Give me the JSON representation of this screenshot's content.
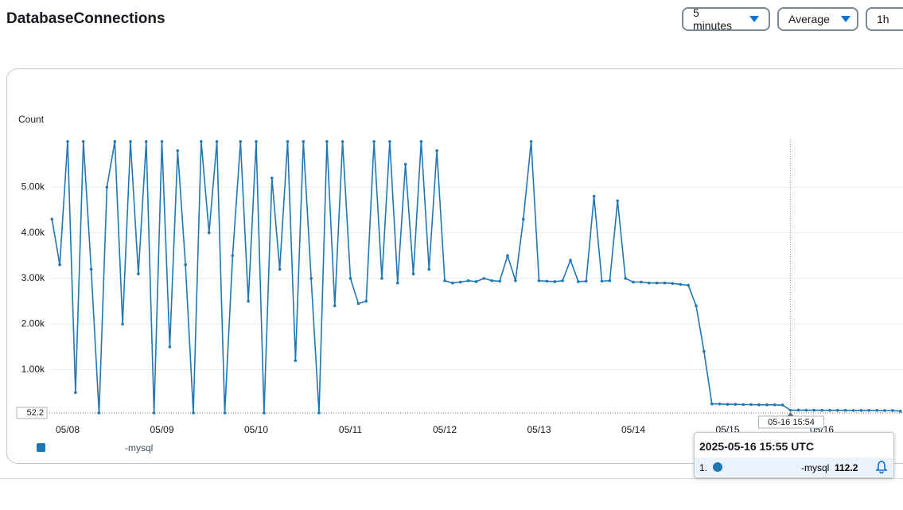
{
  "header": {
    "title": "DatabaseConnections",
    "period": "5 minutes",
    "statistic": "Average",
    "range": "1h"
  },
  "chart_data": {
    "type": "line",
    "y_label": "Count",
    "categories": [
      null,
      null,
      "05/08",
      null,
      null,
      null,
      null,
      null,
      null,
      null,
      null,
      null,
      null,
      null,
      "05/09",
      null,
      null,
      null,
      null,
      null,
      null,
      null,
      null,
      null,
      null,
      null,
      "05/10",
      null,
      null,
      null,
      null,
      null,
      null,
      null,
      null,
      null,
      null,
      null,
      "05/11",
      null,
      null,
      null,
      null,
      null,
      null,
      null,
      null,
      null,
      null,
      null,
      "05/12",
      null,
      null,
      null,
      null,
      null,
      null,
      null,
      null,
      null,
      null,
      null,
      "05/13",
      null,
      null,
      null,
      null,
      null,
      null,
      null,
      null,
      null,
      null,
      null,
      "05/14",
      null,
      null,
      null,
      null,
      null,
      null,
      null,
      null,
      null,
      null,
      null,
      "05/15",
      null,
      null,
      null,
      null,
      null,
      null,
      null,
      null,
      null,
      null,
      null,
      "05/16",
      null,
      null,
      null,
      null,
      null,
      null,
      null,
      null,
      null,
      null
    ],
    "series": [
      {
        "name": "-mysql",
        "color": "#1f77b4",
        "values": [
          4300,
          3300,
          6000,
          500,
          6000,
          3200,
          52.2,
          5000,
          6000,
          2000,
          6000,
          3100,
          6000,
          52.2,
          6000,
          1500,
          5800,
          3300,
          52.2,
          6000,
          4000,
          6000,
          52.2,
          3500,
          6000,
          2500,
          6000,
          52.2,
          5200,
          3200,
          6000,
          1200,
          6000,
          3000,
          52.2,
          6000,
          2400,
          6000,
          3000,
          2450,
          2500,
          6000,
          3000,
          6000,
          2900,
          5500,
          3100,
          6000,
          3200,
          5800,
          2950,
          2900,
          2920,
          2950,
          2930,
          3000,
          2950,
          2940,
          3500,
          2950,
          4300,
          6000,
          2950,
          2940,
          2930,
          2950,
          3400,
          2930,
          2940,
          4800,
          2940,
          2950,
          4700,
          3000,
          2920,
          2920,
          2900,
          2900,
          2900,
          2890,
          2870,
          2850,
          2400,
          1400,
          250,
          250,
          240,
          240,
          235,
          235,
          230,
          230,
          230,
          225,
          112.2,
          115,
          112,
          112,
          110,
          110,
          110,
          110,
          108,
          108,
          108,
          108,
          105,
          105,
          90
        ]
      }
    ],
    "ylim": [
      0,
      6050
    ],
    "yticks": [
      52.2,
      {
        "value": 1000,
        "label": "1.00k"
      },
      {
        "value": 2000,
        "label": "2.00k"
      },
      {
        "value": 3000,
        "label": "3.00k"
      },
      {
        "value": 4000,
        "label": "4.00k"
      },
      {
        "value": 5000,
        "label": "5.00k"
      }
    ],
    "grid": true,
    "tooltip": {
      "time": "2025-05-16 15:55 UTC",
      "crosshair_label": "05-16 15:54",
      "rank": "1.",
      "series": "-mysql",
      "value": 112.2
    }
  }
}
